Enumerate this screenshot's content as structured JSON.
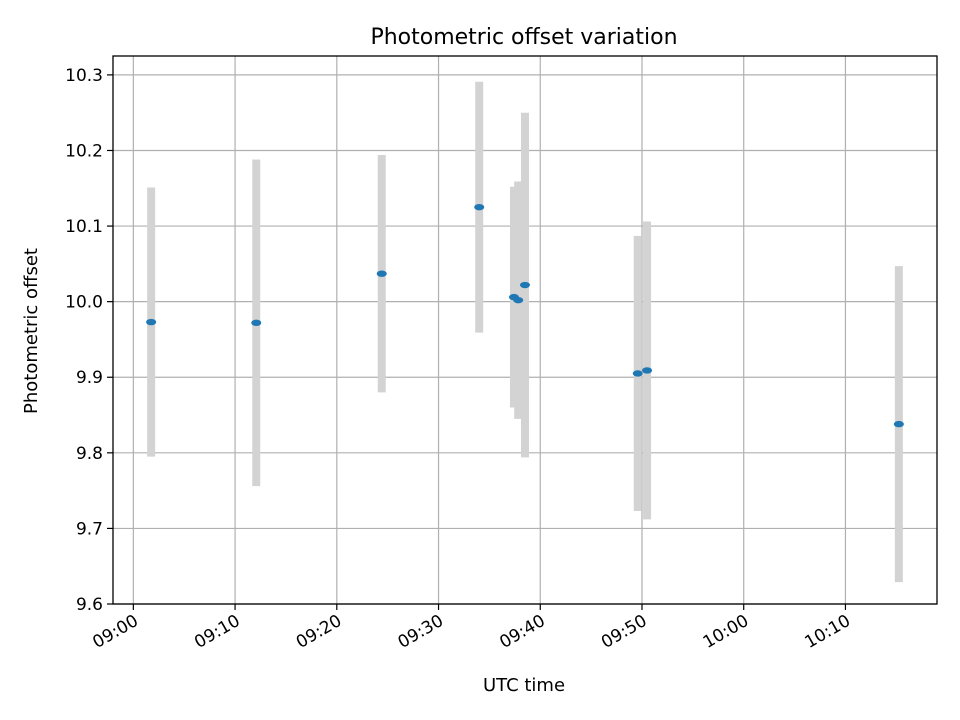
{
  "chart_data": {
    "type": "scatter",
    "title": "Photometric offset variation",
    "xlabel": "UTC time",
    "ylabel": "Photometric offset",
    "grid": true,
    "xlim": [
      "08:58",
      "10:19"
    ],
    "ylim": [
      9.6,
      10.325
    ],
    "xticks": [
      "09:00",
      "09:10",
      "09:20",
      "09:30",
      "09:40",
      "09:50",
      "10:00",
      "10:10"
    ],
    "yticks": [
      "9.6",
      "9.7",
      "9.8",
      "9.9",
      "10.0",
      "10.1",
      "10.2",
      "10.3"
    ],
    "colors": {
      "point": "#1f77b4",
      "errorbar": "#d3d3d3",
      "grid": "#b0b0b0"
    },
    "points": [
      {
        "x": "09:01:45",
        "y": 9.973,
        "err": 0.178
      },
      {
        "x": "09:12:05",
        "y": 9.972,
        "err": 0.216
      },
      {
        "x": "09:24:25",
        "y": 10.037,
        "err": 0.157
      },
      {
        "x": "09:34:00",
        "y": 10.125,
        "err": 0.166
      },
      {
        "x": "09:37:25",
        "y": 10.006,
        "err": 0.146
      },
      {
        "x": "09:37:50",
        "y": 10.002,
        "err": 0.157
      },
      {
        "x": "09:38:30",
        "y": 10.022,
        "err": 0.228
      },
      {
        "x": "09:49:35",
        "y": 9.905,
        "err": 0.182
      },
      {
        "x": "09:50:30",
        "y": 9.909,
        "err": 0.197
      },
      {
        "x": "10:15:15",
        "y": 9.838,
        "err": 0.209
      }
    ]
  }
}
